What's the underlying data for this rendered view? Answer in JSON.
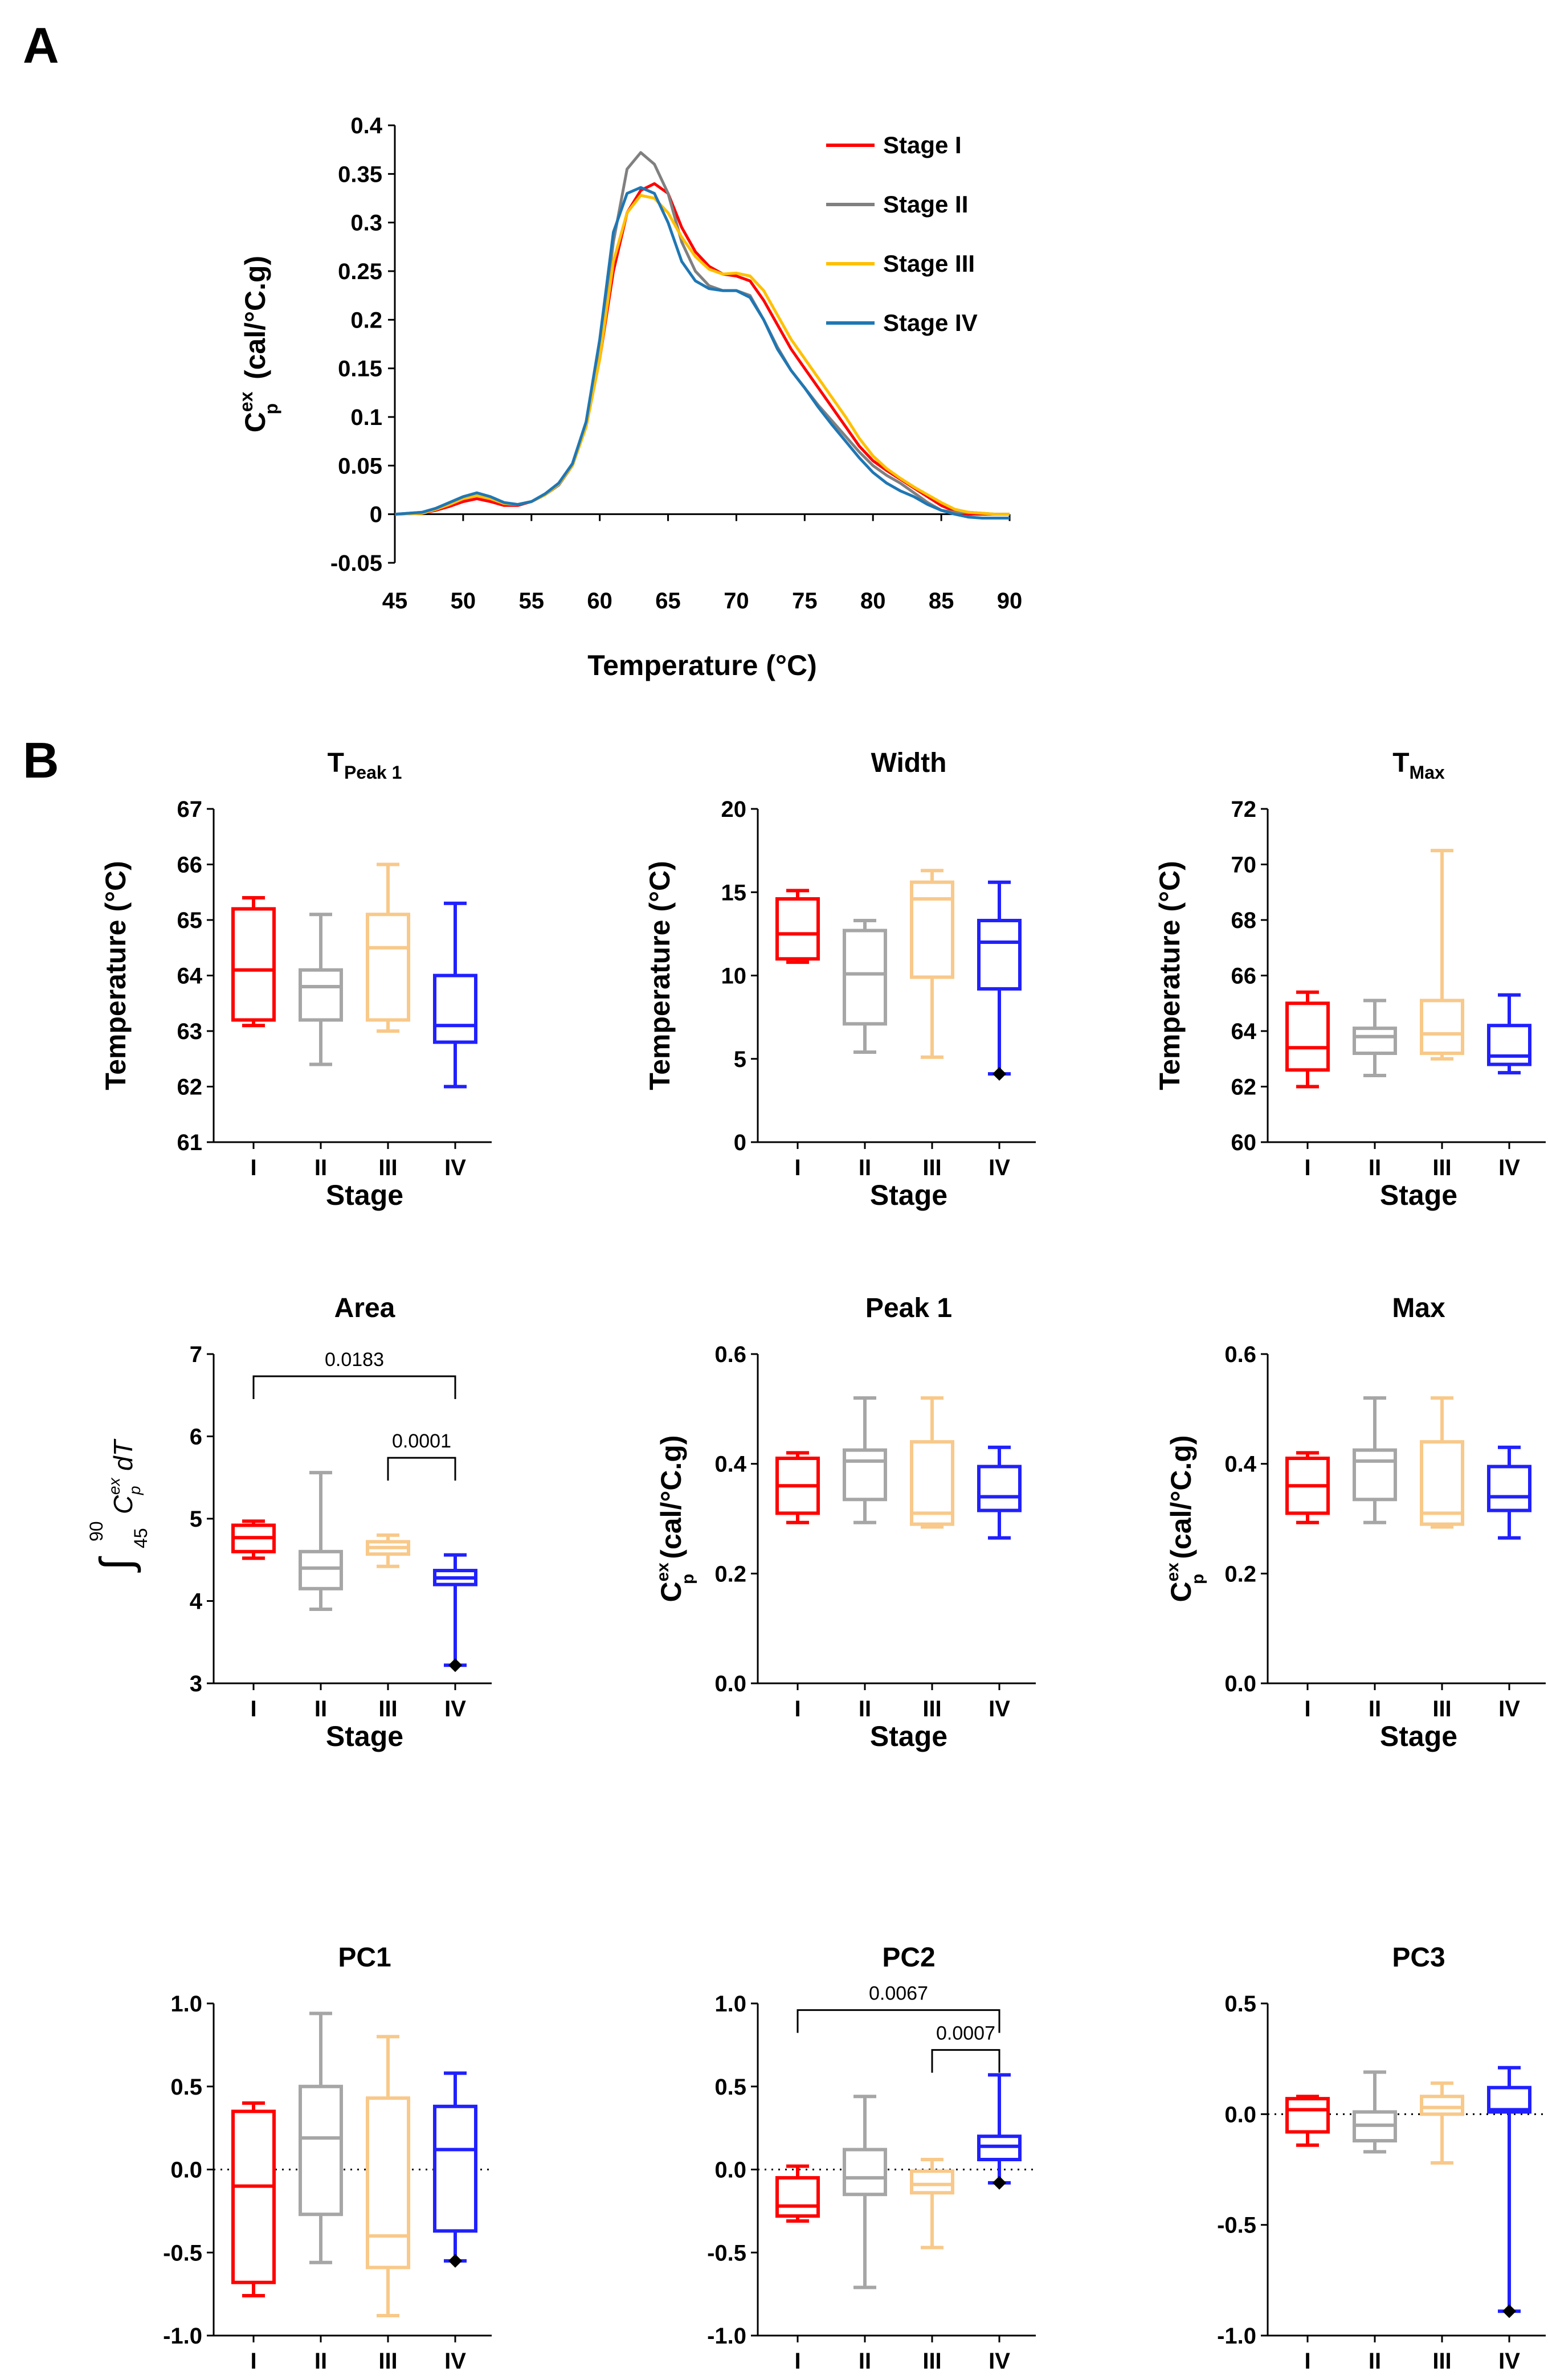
{
  "panel_labels": {
    "a": "A",
    "b": "B"
  },
  "colors": {
    "stage1": "#ff0000",
    "stage2": "#808080",
    "stage3": "#ffc000",
    "stage4": "#1f77b4",
    "box1": "#ff0000",
    "box2": "#a6a6a6",
    "box3": "#f8c98a",
    "box4": "#2020ff"
  },
  "stat_labels": {
    "stage": "Stage",
    "temperature": "Temperature (°C)",
    "cp_main": "C",
    "cp_sub": "p",
    "cp_sup": "ex",
    "cp_unit": "(cal/°C.g)",
    "integral_upper": "90",
    "integral_lower": "45",
    "integral_body": "C",
    "integral_sup": "ex",
    "integral_sub": "p",
    "integral_tail": "dT"
  },
  "chart_data": [
    {
      "id": "A",
      "type": "line",
      "xlabel": "Temperature (°C)",
      "ylabel": "Cp ex (cal/°C.g)",
      "xlim": [
        45,
        90
      ],
      "ylim": [
        -0.05,
        0.4
      ],
      "xticks": [
        "45",
        "50",
        "55",
        "60",
        "65",
        "70",
        "75",
        "80",
        "85",
        "90"
      ],
      "xtick_values": [
        45,
        50,
        55,
        60,
        65,
        70,
        75,
        80,
        85,
        90
      ],
      "yticks": [
        "-0.05",
        "0",
        "0.05",
        "0.1",
        "0.15",
        "0.2",
        "0.25",
        "0.3",
        "0.35",
        "0.4"
      ],
      "ytick_values": [
        -0.05,
        0,
        0.05,
        0.1,
        0.15,
        0.2,
        0.25,
        0.3,
        0.35,
        0.4
      ],
      "legend": [
        "Stage I",
        "Stage II",
        "Stage III",
        "Stage IV"
      ],
      "series": [
        {
          "name": "Stage I",
          "x": [
            45,
            47,
            48,
            49,
            50,
            51,
            52,
            53,
            54,
            55,
            56,
            57,
            58,
            59,
            60,
            61,
            62,
            63,
            64,
            65,
            66,
            67,
            68,
            69,
            70,
            71,
            72,
            73,
            74,
            75,
            76,
            77,
            78,
            79,
            80,
            81,
            82,
            83,
            84,
            85,
            86,
            87,
            88,
            89,
            90
          ],
          "y": [
            0,
            0.001,
            0.004,
            0.008,
            0.013,
            0.016,
            0.013,
            0.009,
            0.009,
            0.013,
            0.02,
            0.03,
            0.05,
            0.09,
            0.16,
            0.25,
            0.31,
            0.333,
            0.34,
            0.33,
            0.295,
            0.27,
            0.255,
            0.247,
            0.245,
            0.24,
            0.22,
            0.195,
            0.17,
            0.15,
            0.13,
            0.11,
            0.09,
            0.07,
            0.055,
            0.045,
            0.036,
            0.027,
            0.018,
            0.009,
            0.003,
            0,
            0,
            0,
            0
          ]
        },
        {
          "name": "Stage II",
          "x": [
            45,
            47,
            48,
            49,
            50,
            51,
            52,
            53,
            54,
            55,
            56,
            57,
            58,
            59,
            60,
            61,
            62,
            63,
            64,
            65,
            66,
            67,
            68,
            69,
            70,
            71,
            72,
            73,
            74,
            75,
            76,
            77,
            78,
            79,
            80,
            81,
            82,
            83,
            84,
            85,
            86,
            87,
            88,
            89,
            90
          ],
          "y": [
            0,
            0.002,
            0.006,
            0.012,
            0.018,
            0.021,
            0.017,
            0.011,
            0.01,
            0.013,
            0.02,
            0.03,
            0.05,
            0.09,
            0.17,
            0.28,
            0.355,
            0.372,
            0.36,
            0.33,
            0.28,
            0.25,
            0.235,
            0.23,
            0.23,
            0.225,
            0.2,
            0.172,
            0.148,
            0.13,
            0.112,
            0.096,
            0.08,
            0.064,
            0.05,
            0.04,
            0.032,
            0.022,
            0.012,
            0.004,
            0.002,
            0.002,
            0.001,
            0,
            0
          ]
        },
        {
          "name": "Stage III",
          "x": [
            45,
            47,
            48,
            49,
            50,
            51,
            52,
            53,
            54,
            55,
            56,
            57,
            58,
            59,
            60,
            61,
            62,
            63,
            64,
            65,
            66,
            67,
            68,
            69,
            70,
            71,
            72,
            73,
            74,
            75,
            76,
            77,
            78,
            79,
            80,
            81,
            82,
            83,
            84,
            85,
            86,
            87,
            88,
            89,
            90
          ],
          "y": [
            0,
            0.001,
            0.005,
            0.01,
            0.016,
            0.019,
            0.016,
            0.011,
            0.01,
            0.013,
            0.02,
            0.031,
            0.05,
            0.09,
            0.16,
            0.26,
            0.31,
            0.328,
            0.325,
            0.31,
            0.285,
            0.265,
            0.252,
            0.247,
            0.248,
            0.245,
            0.23,
            0.205,
            0.18,
            0.16,
            0.14,
            0.12,
            0.1,
            0.078,
            0.06,
            0.047,
            0.037,
            0.028,
            0.02,
            0.012,
            0.005,
            0.002,
            0.001,
            0,
            0
          ]
        },
        {
          "name": "Stage IV",
          "x": [
            45,
            47,
            48,
            49,
            50,
            51,
            52,
            53,
            54,
            55,
            56,
            57,
            58,
            59,
            60,
            61,
            62,
            63,
            64,
            65,
            66,
            67,
            68,
            69,
            70,
            71,
            72,
            73,
            74,
            75,
            76,
            77,
            78,
            79,
            80,
            81,
            82,
            83,
            84,
            85,
            86,
            87,
            88,
            89,
            90
          ],
          "y": [
            0,
            0.002,
            0.006,
            0.012,
            0.018,
            0.022,
            0.018,
            0.012,
            0.01,
            0.013,
            0.021,
            0.032,
            0.052,
            0.095,
            0.18,
            0.29,
            0.33,
            0.336,
            0.33,
            0.3,
            0.26,
            0.24,
            0.232,
            0.23,
            0.23,
            0.223,
            0.2,
            0.17,
            0.148,
            0.13,
            0.11,
            0.092,
            0.075,
            0.058,
            0.043,
            0.032,
            0.024,
            0.018,
            0.01,
            0.004,
            0,
            -0.003,
            -0.004,
            -0.004,
            -0.004
          ]
        }
      ]
    },
    {
      "id": "tpeak1",
      "type": "box",
      "title": "T",
      "title_sub": "Peak 1",
      "ylabel": "Temperature (°C)",
      "xlabel": "Stage",
      "categories": [
        "I",
        "II",
        "III",
        "IV"
      ],
      "ylim": [
        61,
        67
      ],
      "yticks": [
        "61",
        "62",
        "63",
        "64",
        "65",
        "66",
        "67"
      ],
      "ytick_values": [
        61,
        62,
        63,
        64,
        65,
        66,
        67
      ],
      "boxes": [
        {
          "min": 63.1,
          "q1": 63.2,
          "median": 64.1,
          "q3": 65.2,
          "max": 65.4
        },
        {
          "min": 62.4,
          "q1": 63.2,
          "median": 63.8,
          "q3": 64.1,
          "max": 65.1
        },
        {
          "min": 63.0,
          "q1": 63.2,
          "median": 64.5,
          "q3": 65.1,
          "max": 66.0
        },
        {
          "min": 62.0,
          "q1": 62.8,
          "median": 63.1,
          "q3": 64.0,
          "max": 65.3
        }
      ],
      "outliers": [],
      "comparisons": []
    },
    {
      "id": "width",
      "type": "box",
      "title": "Width",
      "title_sub": "",
      "ylabel": "Temperature (°C)",
      "xlabel": "Stage",
      "categories": [
        "I",
        "II",
        "III",
        "IV"
      ],
      "ylim": [
        0,
        20
      ],
      "yticks": [
        "0",
        "5",
        "10",
        "15",
        "20"
      ],
      "ytick_values": [
        0,
        5,
        10,
        15,
        20
      ],
      "boxes": [
        {
          "min": 10.8,
          "q1": 11.0,
          "median": 12.5,
          "q3": 14.6,
          "max": 15.1
        },
        {
          "min": 5.4,
          "q1": 7.1,
          "median": 10.1,
          "q3": 12.7,
          "max": 13.3
        },
        {
          "min": 5.1,
          "q1": 9.9,
          "median": 14.6,
          "q3": 15.6,
          "max": 16.3
        },
        {
          "min": 4.1,
          "q1": 9.2,
          "median": 12.0,
          "q3": 13.3,
          "max": 15.6
        }
      ],
      "outliers": [
        {
          "cat": 3,
          "value": 4.1
        }
      ],
      "comparisons": []
    },
    {
      "id": "tmax",
      "type": "box",
      "title": "T",
      "title_sub": "Max",
      "ylabel": "Temperature (°C)",
      "xlabel": "Stage",
      "categories": [
        "I",
        "II",
        "III",
        "IV"
      ],
      "ylim": [
        60,
        72
      ],
      "yticks": [
        "60",
        "62",
        "64",
        "66",
        "68",
        "70",
        "72"
      ],
      "ytick_values": [
        60,
        62,
        64,
        66,
        68,
        70,
        72
      ],
      "boxes": [
        {
          "min": 62.0,
          "q1": 62.6,
          "median": 63.4,
          "q3": 65.0,
          "max": 65.4
        },
        {
          "min": 62.4,
          "q1": 63.2,
          "median": 63.8,
          "q3": 64.1,
          "max": 65.1
        },
        {
          "min": 63.0,
          "q1": 63.2,
          "median": 63.9,
          "q3": 65.1,
          "max": 70.5
        },
        {
          "min": 62.5,
          "q1": 62.8,
          "median": 63.1,
          "q3": 64.2,
          "max": 65.3
        }
      ],
      "outliers": [],
      "comparisons": []
    },
    {
      "id": "area",
      "type": "box",
      "title": "Area",
      "title_sub": "",
      "ylabel": "integral",
      "xlabel": "Stage",
      "categories": [
        "I",
        "II",
        "III",
        "IV"
      ],
      "ylim": [
        3,
        7
      ],
      "yticks": [
        "3",
        "4",
        "5",
        "6",
        "7"
      ],
      "ytick_values": [
        3,
        4,
        5,
        6,
        7
      ],
      "boxes": [
        {
          "min": 4.52,
          "q1": 4.6,
          "median": 4.77,
          "q3": 4.92,
          "max": 4.97
        },
        {
          "min": 3.9,
          "q1": 4.15,
          "median": 4.4,
          "q3": 4.6,
          "max": 5.56
        },
        {
          "min": 4.42,
          "q1": 4.57,
          "median": 4.65,
          "q3": 4.72,
          "max": 4.8
        },
        {
          "min": 3.22,
          "q1": 4.2,
          "median": 4.28,
          "q3": 4.37,
          "max": 4.56
        }
      ],
      "outliers": [
        {
          "cat": 3,
          "value": 3.22
        }
      ],
      "comparisons": [
        {
          "from": 0,
          "to": 3,
          "label": "0.0183",
          "level": 6.73
        },
        {
          "from": 2,
          "to": 3,
          "label": "0.0001",
          "level": 5.74
        }
      ]
    },
    {
      "id": "peak1",
      "type": "box",
      "title": "Peak 1",
      "title_sub": "",
      "ylabel": "cp",
      "xlabel": "Stage",
      "categories": [
        "I",
        "II",
        "III",
        "IV"
      ],
      "ylim": [
        0,
        0.6
      ],
      "yticks": [
        "0.0",
        "0.2",
        "0.4",
        "0.6"
      ],
      "ytick_values": [
        0,
        0.2,
        0.4,
        0.6
      ],
      "boxes": [
        {
          "min": 0.293,
          "q1": 0.31,
          "median": 0.36,
          "q3": 0.41,
          "max": 0.42
        },
        {
          "min": 0.293,
          "q1": 0.335,
          "median": 0.405,
          "q3": 0.425,
          "max": 0.52
        },
        {
          "min": 0.285,
          "q1": 0.29,
          "median": 0.31,
          "q3": 0.44,
          "max": 0.52
        },
        {
          "min": 0.265,
          "q1": 0.315,
          "median": 0.34,
          "q3": 0.395,
          "max": 0.43
        }
      ],
      "outliers": [],
      "comparisons": []
    },
    {
      "id": "max",
      "type": "box",
      "title": "Max",
      "title_sub": "",
      "ylabel": "cp",
      "xlabel": "Stage",
      "categories": [
        "I",
        "II",
        "III",
        "IV"
      ],
      "ylim": [
        0,
        0.6
      ],
      "yticks": [
        "0.0",
        "0.2",
        "0.4",
        "0.6"
      ],
      "ytick_values": [
        0,
        0.2,
        0.4,
        0.6
      ],
      "boxes": [
        {
          "min": 0.293,
          "q1": 0.31,
          "median": 0.36,
          "q3": 0.41,
          "max": 0.42
        },
        {
          "min": 0.293,
          "q1": 0.335,
          "median": 0.405,
          "q3": 0.425,
          "max": 0.52
        },
        {
          "min": 0.285,
          "q1": 0.29,
          "median": 0.31,
          "q3": 0.44,
          "max": 0.52
        },
        {
          "min": 0.265,
          "q1": 0.315,
          "median": 0.34,
          "q3": 0.395,
          "max": 0.43
        }
      ],
      "outliers": [],
      "comparisons": []
    },
    {
      "id": "pc1",
      "type": "box",
      "title": "PC1",
      "title_sub": "",
      "ylabel": "",
      "xlabel": "Stage",
      "categories": [
        "I",
        "II",
        "III",
        "IV"
      ],
      "ylim": [
        -1,
        1
      ],
      "yticks": [
        "-1.0",
        "-0.5",
        "0.0",
        "0.5",
        "1.0"
      ],
      "ytick_values": [
        -1,
        -0.5,
        0,
        0.5,
        1
      ],
      "zero_line": true,
      "boxes": [
        {
          "min": -0.76,
          "q1": -0.68,
          "median": -0.1,
          "q3": 0.35,
          "max": 0.4
        },
        {
          "min": -0.56,
          "q1": -0.27,
          "median": 0.19,
          "q3": 0.5,
          "max": 0.94
        },
        {
          "min": -0.88,
          "q1": -0.59,
          "median": -0.4,
          "q3": 0.43,
          "max": 0.8
        },
        {
          "min": -0.55,
          "q1": -0.37,
          "median": 0.12,
          "q3": 0.38,
          "max": 0.58
        }
      ],
      "outliers": [
        {
          "cat": 3,
          "value": -0.55
        }
      ],
      "comparisons": []
    },
    {
      "id": "pc2",
      "type": "box",
      "title": "PC2",
      "title_sub": "",
      "ylabel": "",
      "xlabel": "Stage",
      "categories": [
        "I",
        "II",
        "III",
        "IV"
      ],
      "ylim": [
        -1,
        1
      ],
      "yticks": [
        "-1.0",
        "-0.5",
        "0.0",
        "0.5",
        "1.0"
      ],
      "ytick_values": [
        -1,
        -0.5,
        0,
        0.5,
        1
      ],
      "zero_line": true,
      "boxes": [
        {
          "min": -0.31,
          "q1": -0.28,
          "median": -0.22,
          "q3": -0.05,
          "max": 0.02
        },
        {
          "min": -0.71,
          "q1": -0.15,
          "median": -0.05,
          "q3": 0.12,
          "max": 0.44
        },
        {
          "min": -0.47,
          "q1": -0.14,
          "median": -0.09,
          "q3": -0.01,
          "max": 0.06
        },
        {
          "min": -0.08,
          "q1": 0.06,
          "median": 0.14,
          "q3": 0.2,
          "max": 0.57
        }
      ],
      "outliers": [
        {
          "cat": 3,
          "value": -0.08
        }
      ],
      "comparisons": [
        {
          "from": 0,
          "to": 3,
          "label": "0.0067",
          "level": 0.96
        },
        {
          "from": 2,
          "to": 3,
          "label": "0.0007",
          "level": 0.72
        }
      ]
    },
    {
      "id": "pc3",
      "type": "box",
      "title": "PC3",
      "title_sub": "",
      "ylabel": "",
      "xlabel": "Stage",
      "categories": [
        "I",
        "II",
        "III",
        "IV"
      ],
      "ylim": [
        -1,
        0.5
      ],
      "yticks": [
        "-1.0",
        "-0.5",
        "0.0",
        "0.5"
      ],
      "ytick_values": [
        -1,
        -0.5,
        0,
        0.5
      ],
      "zero_line": true,
      "boxes": [
        {
          "min": -0.14,
          "q1": -0.08,
          "median": 0.02,
          "q3": 0.07,
          "max": 0.08
        },
        {
          "min": -0.17,
          "q1": -0.12,
          "median": -0.05,
          "q3": 0.01,
          "max": 0.19
        },
        {
          "min": -0.22,
          "q1": 0.0,
          "median": 0.03,
          "q3": 0.08,
          "max": 0.14
        },
        {
          "min": -0.89,
          "q1": 0.01,
          "median": 0.02,
          "q3": 0.12,
          "max": 0.21
        }
      ],
      "outliers": [
        {
          "cat": 3,
          "value": -0.89
        }
      ],
      "comparisons": []
    }
  ]
}
